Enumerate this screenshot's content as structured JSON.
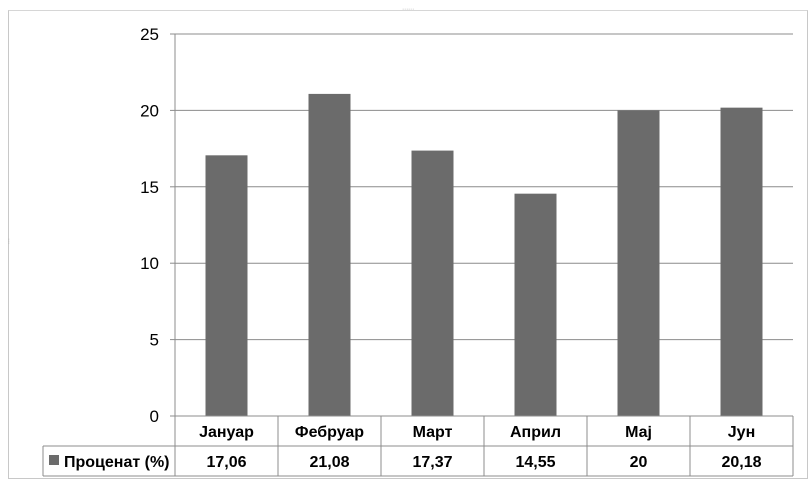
{
  "chart_data": {
    "type": "bar",
    "categories": [
      "Јануар",
      "Фебруар",
      "Март",
      "Април",
      "Мај",
      "Јун"
    ],
    "series": [
      {
        "name": "Проценат (%)",
        "values": [
          17.06,
          21.08,
          17.37,
          14.55,
          20,
          20.18
        ],
        "value_labels": [
          "17,06",
          "21,08",
          "17,37",
          "14,55",
          "20",
          "20,18"
        ],
        "color": "#6b6b6b"
      }
    ],
    "y_ticks": [
      "0",
      "5",
      "10",
      "15",
      "20",
      "25"
    ],
    "ylim": [
      0,
      25
    ],
    "grid": true,
    "data_table": true,
    "title": "",
    "xlabel": "",
    "ylabel": ""
  }
}
